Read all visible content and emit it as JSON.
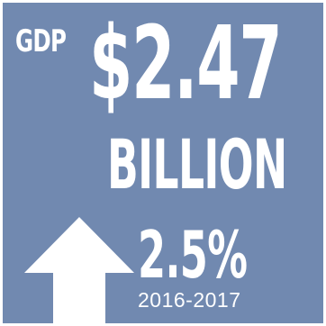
{
  "headline": {
    "label": "GDP",
    "amount": "$2.47",
    "unit": "BILLION"
  },
  "growth": {
    "rate": "2.5%",
    "period": "2016-2017",
    "direction_icon": "arrow-up-icon"
  },
  "colors": {
    "background": "#7189b0",
    "text": "#ffffff"
  }
}
